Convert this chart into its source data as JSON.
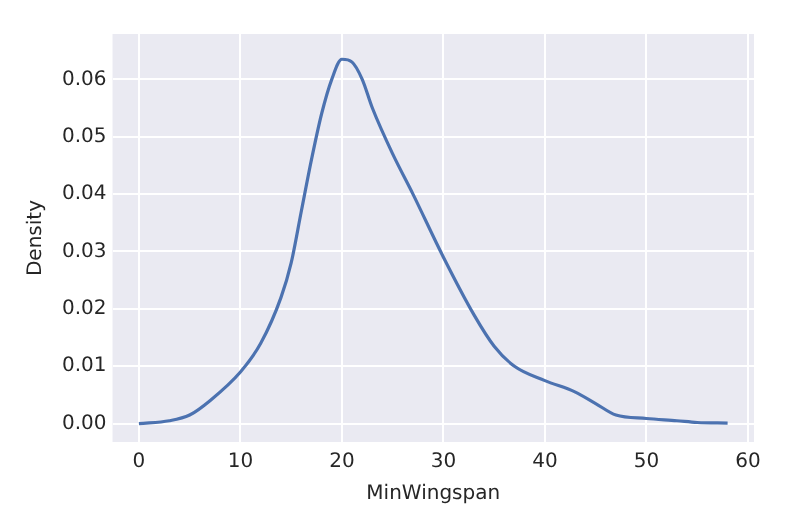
{
  "chart_data": {
    "type": "line",
    "xlabel": "MinWingspan",
    "ylabel": "Density",
    "x": [
      0,
      3,
      5,
      7,
      10,
      12,
      14,
      15,
      16,
      17,
      18,
      19,
      20,
      21,
      22,
      23,
      25,
      27,
      30,
      33,
      35,
      37,
      40,
      43,
      45,
      47,
      50,
      53,
      55,
      58
    ],
    "series": [
      {
        "color": "#4c72b0",
        "values": [
          0,
          0.0005,
          0.0015,
          0.004,
          0.009,
          0.014,
          0.022,
          0.028,
          0.037,
          0.046,
          0.054,
          0.06,
          0.0635,
          0.063,
          0.06,
          0.055,
          0.047,
          0.04,
          0.029,
          0.019,
          0.0135,
          0.01,
          0.0075,
          0.0055,
          0.0035,
          0.0015,
          0.0009,
          0.0005,
          0.0002,
          0.0001
        ]
      }
    ],
    "xlim": [
      -2.6,
      60.6
    ],
    "xticks": [
      0,
      10,
      20,
      30,
      40,
      50,
      60
    ],
    "ylim": [
      -0.0032,
      0.0679
    ],
    "yticks": [
      {
        "value": 0,
        "label": "0.00"
      },
      {
        "value": 0.01,
        "label": "0.01"
      },
      {
        "value": 0.02,
        "label": "0.02"
      },
      {
        "value": 0.03,
        "label": "0.03"
      },
      {
        "value": 0.04,
        "label": "0.04"
      },
      {
        "value": 0.05,
        "label": "0.05"
      },
      {
        "value": 0.06,
        "label": "0.06"
      }
    ],
    "grid": true,
    "marker": "none",
    "line_style": "solid"
  }
}
